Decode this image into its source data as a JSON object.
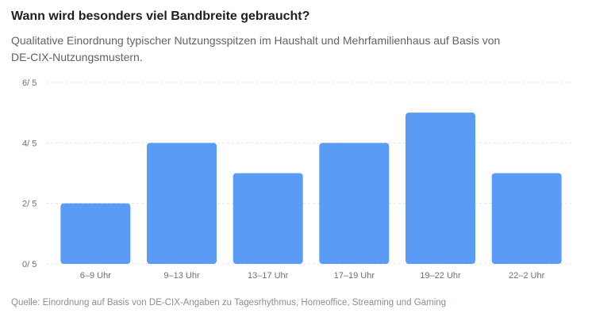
{
  "header": {
    "title": "Wann wird besonders viel Bandbreite gebraucht?",
    "subtitle": "Qualitative Einordnung typischer Nutzungsspitzen im Haushalt und Mehrfamilienhaus auf Basis von DE-CIX-Nutzungsmustern."
  },
  "footer": {
    "source": "Quelle: Einordnung auf Basis von DE-CIX-Angaben zu Tagesrhythmus, Homeoffice, Streaming und Gaming"
  },
  "colors": {
    "bar": "#5a9bf6",
    "grid": "#e3e6ea",
    "tick_text": "#6b7078"
  },
  "chart_data": {
    "type": "bar",
    "title": "",
    "xlabel": "",
    "ylabel": "",
    "categories": [
      "6–9 Uhr",
      "9–13 Uhr",
      "13–17 Uhr",
      "17–19 Uhr",
      "19–22 Uhr",
      "22–2 Uhr"
    ],
    "values": [
      2,
      4,
      3,
      4,
      5,
      3
    ],
    "ylim": [
      0,
      6
    ],
    "yticks": [
      0,
      2,
      4,
      6
    ],
    "ytick_labels": [
      "0/ 5",
      "2/ 5",
      "4/ 5",
      "6/ 5"
    ],
    "grid": true,
    "grid_style": "dashed horizontal",
    "legend": "none"
  }
}
